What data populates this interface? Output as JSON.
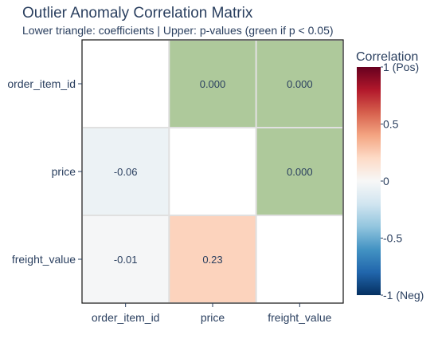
{
  "chart_data": {
    "type": "heatmap",
    "title": "Outlier Anomaly Correlation Matrix",
    "subtitle": "Lower triangle: coefficients | Upper: p-values (green if p < 0.05)",
    "x_categories": [
      "order_item_id",
      "price",
      "freight_value"
    ],
    "y_categories": [
      "order_item_id",
      "price",
      "freight_value"
    ],
    "cells": [
      {
        "row": 0,
        "col": 0,
        "kind": "diagonal",
        "value": null,
        "label": ""
      },
      {
        "row": 0,
        "col": 1,
        "kind": "pvalue",
        "value": 0.0,
        "label": "0.000",
        "significant": true
      },
      {
        "row": 0,
        "col": 2,
        "kind": "pvalue",
        "value": 0.0,
        "label": "0.000",
        "significant": true
      },
      {
        "row": 1,
        "col": 0,
        "kind": "coefficient",
        "value": -0.06,
        "label": "-0.06"
      },
      {
        "row": 1,
        "col": 1,
        "kind": "diagonal",
        "value": null,
        "label": ""
      },
      {
        "row": 1,
        "col": 2,
        "kind": "pvalue",
        "value": 0.0,
        "label": "0.000",
        "significant": true
      },
      {
        "row": 2,
        "col": 0,
        "kind": "coefficient",
        "value": -0.01,
        "label": "-0.01"
      },
      {
        "row": 2,
        "col": 1,
        "kind": "coefficient",
        "value": 0.23,
        "label": "0.23"
      },
      {
        "row": 2,
        "col": 2,
        "kind": "diagonal",
        "value": null,
        "label": ""
      }
    ],
    "colorbar": {
      "title": "Correlation",
      "range": [
        -1,
        1
      ],
      "tick_values": [
        1,
        0.5,
        0,
        -0.5,
        -1
      ],
      "tick_labels": [
        "1 (Pos)",
        "0.5",
        "0",
        "-0.5",
        "-1 (Neg)"
      ],
      "colorscale": [
        "#053061",
        "#2166ac",
        "#4393c3",
        "#92c5de",
        "#d1e5f0",
        "#f7f7f7",
        "#fddbc7",
        "#f4a582",
        "#d6604d",
        "#b2182b",
        "#67001f"
      ]
    },
    "significant_color": "#aec99b",
    "diagonal_color": "#ffffff"
  }
}
